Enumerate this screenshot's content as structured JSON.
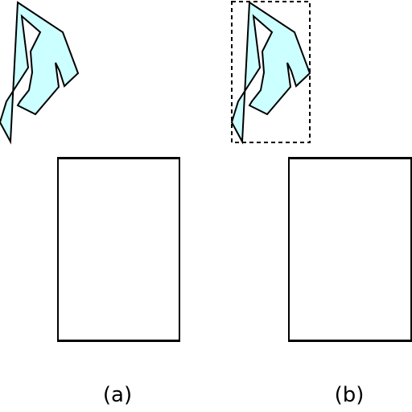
{
  "colors": {
    "shape_fill": "#ccffff",
    "stroke": "#000000",
    "background": "#ffffff"
  },
  "panels": [
    {
      "caption": "(a)",
      "shape": "arrow-polygon",
      "has_bounding_box": false
    },
    {
      "caption": "(b)",
      "shape": "arrow-polygon",
      "has_bounding_box": true
    }
  ]
}
